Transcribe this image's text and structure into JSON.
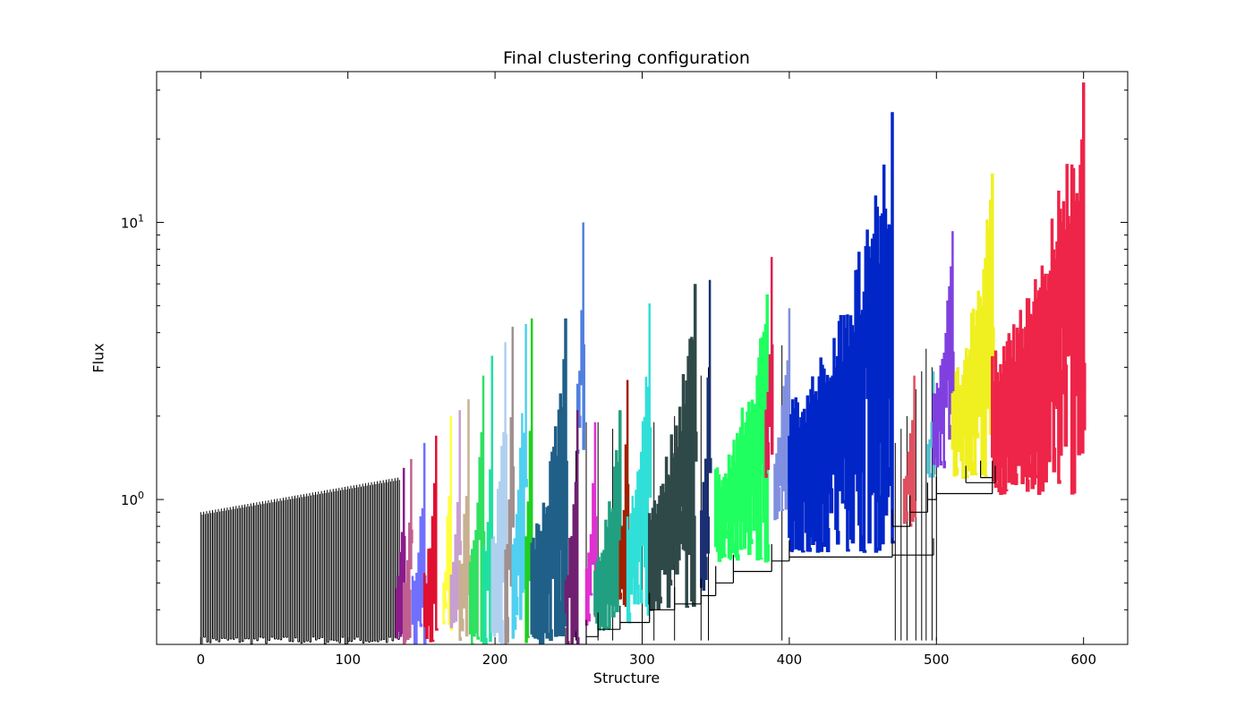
{
  "chart_data": {
    "type": "dendrogram",
    "title": "Final clustering configuration",
    "xlabel": "Structure",
    "ylabel": "Flux",
    "xlim": [
      -30,
      630
    ],
    "ylim": [
      0.3,
      35
    ],
    "yscale": "log",
    "x_ticks": [
      0,
      100,
      200,
      300,
      400,
      500,
      600
    ],
    "y_ticks": [
      {
        "value": 1,
        "label_base": "10",
        "label_exp": "0"
      },
      {
        "value": 10,
        "label_base": "10",
        "label_exp": "1"
      }
    ],
    "leaf_count": 600,
    "background_leaves": {
      "color": "#000000",
      "x_range": [
        0,
        134
      ],
      "top_value_range": [
        0.9,
        1.2
      ]
    },
    "clusters": [
      {
        "color": "#8b1a8b",
        "x_range": [
          133,
          138
        ],
        "peak": 1.3,
        "base": 0.3
      },
      {
        "color": "#c06090",
        "x_range": [
          138,
          143
        ],
        "peak": 1.4,
        "base": 0.3
      },
      {
        "color": "#7070ff",
        "x_range": [
          144,
          152
        ],
        "peak": 1.6,
        "base": 0.3
      },
      {
        "color": "#e01030",
        "x_range": [
          152,
          160
        ],
        "peak": 1.7,
        "base": 0.3
      },
      {
        "color": "#ffff40",
        "x_range": [
          165,
          170
        ],
        "peak": 2.0,
        "base": 0.3
      },
      {
        "color": "#c8a0d0",
        "x_range": [
          170,
          176
        ],
        "peak": 2.1,
        "base": 0.3
      },
      {
        "color": "#c8b090",
        "x_range": [
          176,
          182
        ],
        "peak": 2.3,
        "base": 0.3
      },
      {
        "color": "#30e060",
        "x_range": [
          183,
          192
        ],
        "peak": 2.8,
        "base": 0.3
      },
      {
        "color": "#20e0a0",
        "x_range": [
          192,
          198
        ],
        "peak": 3.3,
        "base": 0.3
      },
      {
        "color": "#b0d0f0",
        "x_range": [
          198,
          207
        ],
        "peak": 3.7,
        "base": 0.3
      },
      {
        "color": "#a09090",
        "x_range": [
          207,
          212
        ],
        "peak": 4.2,
        "base": 0.3
      },
      {
        "color": "#50d0f0",
        "x_range": [
          212,
          221
        ],
        "peak": 4.3,
        "base": 0.3
      },
      {
        "color": "#20d020",
        "x_range": [
          221,
          225
        ],
        "peak": 4.5,
        "base": 0.3
      },
      {
        "color": "#1f5f88",
        "x_range": [
          225,
          248
        ],
        "peak": 4.5,
        "base": 0.3
      },
      {
        "color": "#5080e0",
        "x_range": [
          256,
          260
        ],
        "peak": 10.0,
        "base": 1.3
      },
      {
        "color": "#702070",
        "x_range": [
          248,
          256
        ],
        "peak": 2.1,
        "base": 0.3
      },
      {
        "color": "#e030d0",
        "x_range": [
          262,
          268
        ],
        "peak": 1.9,
        "base": 0.32
      },
      {
        "color": "#20a080",
        "x_range": [
          268,
          285
        ],
        "peak": 2.1,
        "base": 0.34
      },
      {
        "color": "#a02000",
        "x_range": [
          285,
          290
        ],
        "peak": 2.7,
        "base": 0.36
      },
      {
        "color": "#30e0d8",
        "x_range": [
          290,
          305
        ],
        "peak": 5.1,
        "base": 0.36
      },
      {
        "color": "#2f4848",
        "x_range": [
          305,
          336
        ],
        "peak": 6.0,
        "base": 0.4
      },
      {
        "color": "#1a3070",
        "x_range": [
          340,
          346
        ],
        "peak": 6.2,
        "base": 0.45
      },
      {
        "color": "#20ff60",
        "x_range": [
          350,
          385
        ],
        "peak": 5.5,
        "base": 0.6
      },
      {
        "color": "#e02050",
        "x_range": [
          384,
          388
        ],
        "peak": 7.5,
        "base": 1.2
      },
      {
        "color": "#8090e0",
        "x_range": [
          390,
          400
        ],
        "peak": 4.9,
        "base": 0.8
      },
      {
        "color": "#0026c8",
        "x_range": [
          400,
          470
        ],
        "peak": 25.0,
        "base": 0.65
      },
      {
        "color": "#e05060",
        "x_range": [
          478,
          485
        ],
        "peak": 2.8,
        "base": 0.8
      },
      {
        "color": "#50c0d0",
        "x_range": [
          494,
          498
        ],
        "peak": 2.9,
        "base": 1.2
      },
      {
        "color": "#8040e0",
        "x_range": [
          498,
          511
        ],
        "peak": 9.3,
        "base": 1.3
      },
      {
        "color": "#f0f020",
        "x_range": [
          511,
          538
        ],
        "peak": 15.0,
        "base": 1.2
      },
      {
        "color": "#ee2448",
        "x_range": [
          538,
          600
        ],
        "peak": 32.0,
        "base": 1.05
      }
    ]
  }
}
